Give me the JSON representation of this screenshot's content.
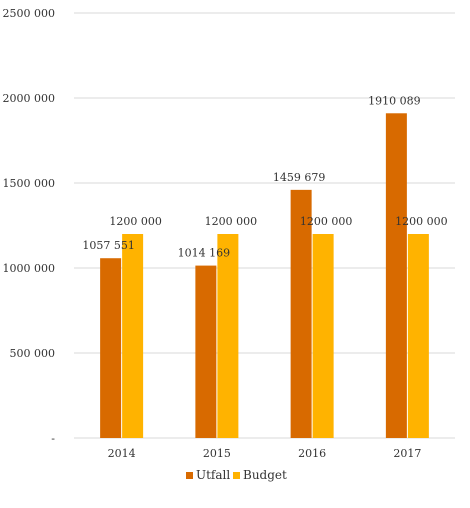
{
  "chart_data": {
    "type": "bar",
    "title": "",
    "xlabel": "",
    "ylabel": "",
    "categories": [
      "2014",
      "2015",
      "2016",
      "2017"
    ],
    "ylim": [
      0,
      2500000
    ],
    "y_ticks": [
      0,
      500000,
      1000000,
      1500000,
      2000000,
      2500000
    ],
    "y_tick_labels": [
      "-",
      "500 000",
      "1000 000",
      "1500 000",
      "2000 000",
      "2500 000"
    ],
    "grid": "horizontal",
    "legend_position": "bottom",
    "series": [
      {
        "name": "Utfall",
        "color": "#d86a00",
        "values": [
          1057551,
          1014169,
          1459679,
          1910089
        ],
        "labels": [
          "1057 551",
          "1014 169",
          "1459 679",
          "1910 089"
        ]
      },
      {
        "name": "Budget",
        "color": "#ffb300",
        "values": [
          1200000,
          1200000,
          1200000,
          1200000
        ],
        "labels": [
          "1200 000",
          "1200 000",
          "1200 000",
          "1200 000"
        ]
      }
    ]
  }
}
